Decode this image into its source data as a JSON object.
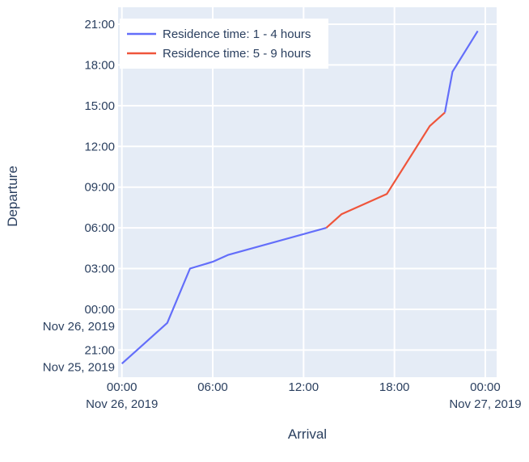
{
  "chart_data": {
    "type": "line",
    "xlabel": "Arrival",
    "ylabel": "Departure",
    "xlim": [
      "2019-11-25T23:45",
      "2019-11-27T00:45"
    ],
    "ylim": [
      "2019-11-25T19:00",
      "2019-11-26T22:15"
    ],
    "x_ticks": [
      {
        "value": "2019-11-26T00:00",
        "label": "00:00",
        "sublabel": "Nov 26, 2019"
      },
      {
        "value": "2019-11-26T06:00",
        "label": "06:00",
        "sublabel": ""
      },
      {
        "value": "2019-11-26T12:00",
        "label": "12:00",
        "sublabel": ""
      },
      {
        "value": "2019-11-26T18:00",
        "label": "18:00",
        "sublabel": ""
      },
      {
        "value": "2019-11-27T00:00",
        "label": "00:00",
        "sublabel": "Nov 27, 2019"
      }
    ],
    "y_ticks": [
      {
        "value": "2019-11-25T21:00",
        "label": "21:00",
        "sublabel": "Nov 25, 2019"
      },
      {
        "value": "2019-11-26T00:00",
        "label": "00:00",
        "sublabel": "Nov 26, 2019"
      },
      {
        "value": "2019-11-26T03:00",
        "label": "03:00",
        "sublabel": ""
      },
      {
        "value": "2019-11-26T06:00",
        "label": "06:00",
        "sublabel": ""
      },
      {
        "value": "2019-11-26T09:00",
        "label": "09:00",
        "sublabel": ""
      },
      {
        "value": "2019-11-26T12:00",
        "label": "12:00",
        "sublabel": ""
      },
      {
        "value": "2019-11-26T15:00",
        "label": "15:00",
        "sublabel": ""
      },
      {
        "value": "2019-11-26T18:00",
        "label": "18:00",
        "sublabel": ""
      },
      {
        "value": "2019-11-26T21:00",
        "label": "21:00",
        "sublabel": ""
      }
    ],
    "grid": true,
    "legend_position": "top-left",
    "series": [
      {
        "name": "Residence time: 1 - 4 hours",
        "color": "#636efa",
        "segments": [
          {
            "x": [
              "2019-11-26T00:00",
              "2019-11-26T01:00",
              "2019-11-26T03:00",
              "2019-11-26T04:30",
              "2019-11-26T06:00",
              "2019-11-26T07:00",
              "2019-11-26T13:30"
            ],
            "y": [
              "2019-11-25T20:00",
              "2019-11-25T21:00",
              "2019-11-25T23:00",
              "2019-11-26T03:00",
              "2019-11-26T03:30",
              "2019-11-26T04:00",
              "2019-11-26T06:00"
            ]
          },
          {
            "x": [
              "2019-11-26T21:20",
              "2019-11-26T21:50",
              "2019-11-26T23:30"
            ],
            "y": [
              "2019-11-26T14:30",
              "2019-11-26T17:30",
              "2019-11-26T20:30"
            ]
          }
        ]
      },
      {
        "name": "Residence time: 5 - 9 hours",
        "color": "#ef553b",
        "segments": [
          {
            "x": [
              "2019-11-26T13:30",
              "2019-11-26T14:30",
              "2019-11-26T17:30",
              "2019-11-26T20:20",
              "2019-11-26T21:20"
            ],
            "y": [
              "2019-11-26T06:00",
              "2019-11-26T07:00",
              "2019-11-26T08:30",
              "2019-11-26T13:30",
              "2019-11-26T14:30"
            ]
          }
        ]
      }
    ]
  },
  "colors": {
    "plot_background": "#e5ecf6",
    "grid": "#ffffff",
    "text": "#2a3f5f"
  }
}
